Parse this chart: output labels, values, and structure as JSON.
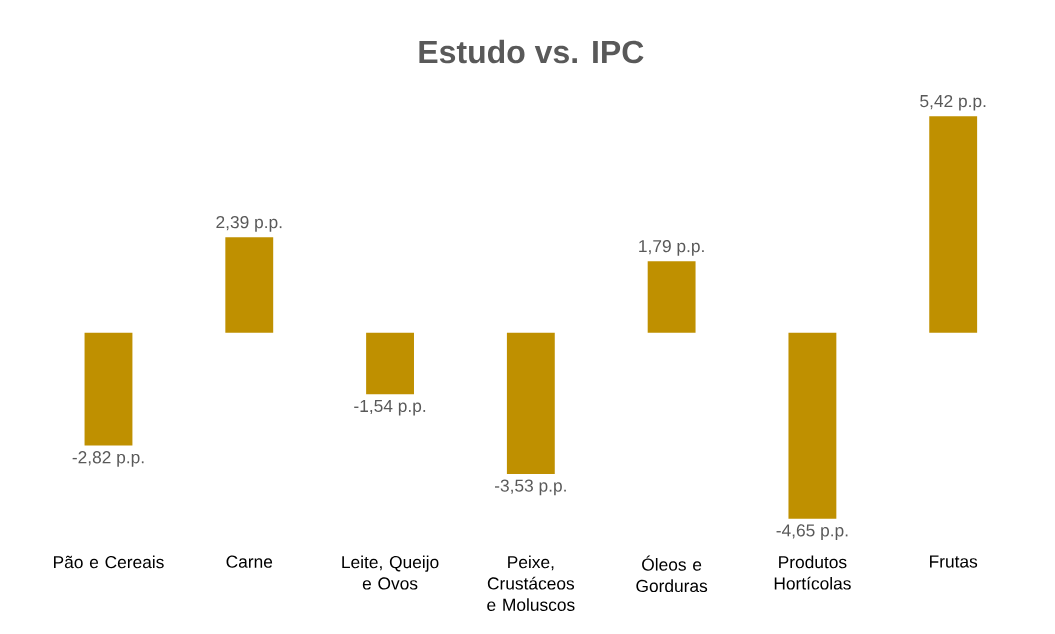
{
  "chart_data": {
    "type": "bar",
    "title": "Estudo vs. IPC",
    "categories": [
      "Pão e Cereais",
      "Carne",
      "Leite, Queijo e Ovos",
      "Peixe, Crustáceos e Moluscos",
      "Óleos e Gorduras",
      "Produtos Hortícolas",
      "Frutas"
    ],
    "values": [
      -2.82,
      2.39,
      -1.54,
      -3.53,
      1.79,
      -4.65,
      5.42
    ],
    "value_labels": [
      "-2,82 p.p.",
      "2,39 p.p.",
      "-1,54 p.p.",
      "-3,53 p.p.",
      "1,79 p.p.",
      "-4,65 p.p.",
      "5,42 p.p."
    ],
    "color": "#bf9000"
  }
}
